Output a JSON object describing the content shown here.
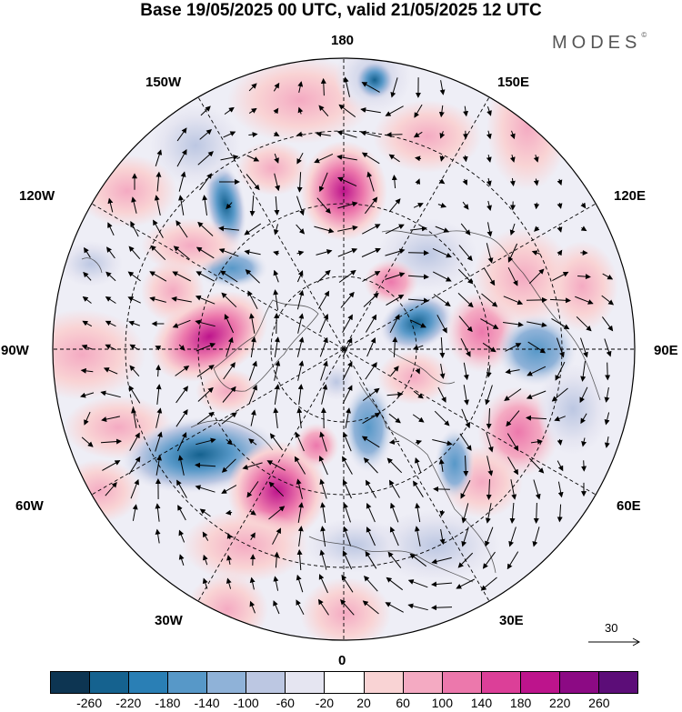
{
  "title": "Base 19/05/2025 00 UTC, valid 21/05/2025 12 UTC",
  "brand": "MODES",
  "brand_mark": "©",
  "longitude_labels": {
    "n180": "180",
    "w150": "150W",
    "e150": "150E",
    "w120": "120W",
    "e120": "120E",
    "w90": "90W",
    "e90": "90E",
    "w60": "60W",
    "e60": "60E",
    "w30": "30W",
    "e30": "30E",
    "s0": "0"
  },
  "reference_vector": "30",
  "colorbar": {
    "ticks": [
      "-260",
      "-220",
      "-180",
      "-140",
      "-100",
      "-60",
      "-20",
      "20",
      "60",
      "100",
      "140",
      "180",
      "220",
      "260"
    ],
    "colors": [
      "#0d3552",
      "#15628f",
      "#2a7fb5",
      "#5798c8",
      "#8fb2d8",
      "#bcc7e2",
      "#e5e5f1",
      "#ffffff",
      "#f9d3d4",
      "#f4aac2",
      "#ec78ac",
      "#dc3f98",
      "#bd148c",
      "#8c0a84",
      "#5c0d78"
    ]
  }
}
